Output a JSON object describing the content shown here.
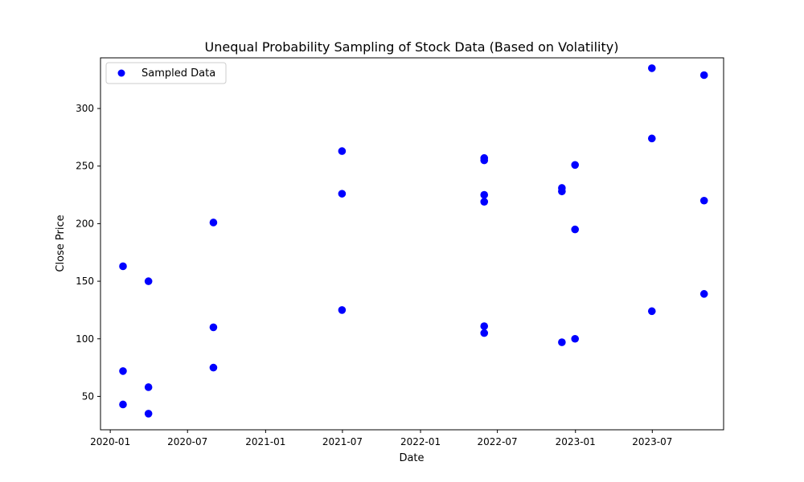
{
  "chart_data": {
    "type": "scatter",
    "title": "Unequal Probability Sampling of Stock Data (Based on Volatility)",
    "xlabel": "Date",
    "ylabel": "Close Price",
    "xlim": [
      "2019-12-09",
      "2023-12-16"
    ],
    "ylim": [
      21,
      344
    ],
    "x_ticks": [
      "2020-01",
      "2020-07",
      "2021-01",
      "2021-07",
      "2022-01",
      "2022-07",
      "2023-01",
      "2023-07"
    ],
    "y_ticks": [
      50,
      100,
      150,
      200,
      250,
      300
    ],
    "grid": false,
    "legend": {
      "position": "top-left",
      "entries": [
        "Sampled Data"
      ]
    },
    "colors": {
      "marker": "#0000ff"
    },
    "series": [
      {
        "name": "Sampled Data",
        "points": [
          {
            "x": "2020-01-31",
            "y": 163
          },
          {
            "x": "2020-01-31",
            "y": 72
          },
          {
            "x": "2020-01-31",
            "y": 43
          },
          {
            "x": "2020-03-31",
            "y": 150
          },
          {
            "x": "2020-03-31",
            "y": 58
          },
          {
            "x": "2020-03-31",
            "y": 35
          },
          {
            "x": "2020-08-31",
            "y": 201
          },
          {
            "x": "2020-08-31",
            "y": 110
          },
          {
            "x": "2020-08-31",
            "y": 75
          },
          {
            "x": "2021-06-30",
            "y": 263
          },
          {
            "x": "2021-06-30",
            "y": 226
          },
          {
            "x": "2021-06-30",
            "y": 125
          },
          {
            "x": "2022-05-31",
            "y": 257
          },
          {
            "x": "2022-05-31",
            "y": 255
          },
          {
            "x": "2022-05-31",
            "y": 225
          },
          {
            "x": "2022-05-31",
            "y": 219
          },
          {
            "x": "2022-05-31",
            "y": 111
          },
          {
            "x": "2022-05-31",
            "y": 105
          },
          {
            "x": "2022-11-30",
            "y": 231
          },
          {
            "x": "2022-11-30",
            "y": 228
          },
          {
            "x": "2022-11-30",
            "y": 97
          },
          {
            "x": "2022-12-31",
            "y": 251
          },
          {
            "x": "2022-12-31",
            "y": 195
          },
          {
            "x": "2022-12-31",
            "y": 100
          },
          {
            "x": "2023-06-30",
            "y": 335
          },
          {
            "x": "2023-06-30",
            "y": 274
          },
          {
            "x": "2023-06-30",
            "y": 124
          },
          {
            "x": "2023-10-31",
            "y": 329
          },
          {
            "x": "2023-10-31",
            "y": 220
          },
          {
            "x": "2023-10-31",
            "y": 139
          }
        ]
      }
    ]
  }
}
